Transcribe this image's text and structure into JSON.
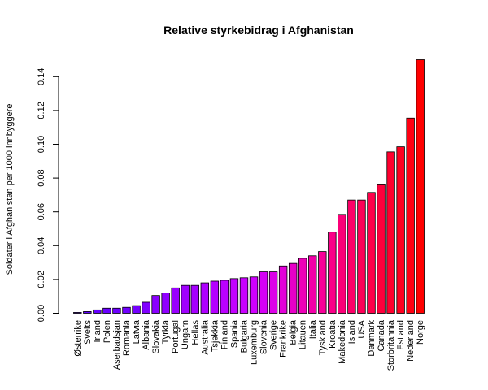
{
  "chart_data": {
    "type": "bar",
    "title": "Relative styrkebidrag i Afghanistan",
    "xlabel": "",
    "ylabel": "Soldater i Afghanistan per 1000 innbyggere",
    "ylim": [
      0,
      0.15
    ],
    "yticks": [
      "0.00",
      "0.02",
      "0.04",
      "0.06",
      "0.08",
      "0.10",
      "0.12",
      "0.14"
    ],
    "ytick_values": [
      0,
      0.02,
      0.04,
      0.06,
      0.08,
      0.1,
      0.12,
      0.14
    ],
    "categories": [
      "Østerrike",
      "Sveits",
      "Irland",
      "Polen",
      "Aserbadsjan",
      "Romania",
      "Latvia",
      "Albania",
      "Slovakia",
      "Tyrkia",
      "Portugal",
      "Ungarn",
      "Hellas",
      "Australia",
      "Tsjekkia",
      "Finland",
      "Spania",
      "Bulgaria",
      "Luxemburg",
      "Slovenia",
      "Sverige",
      "Frankrike",
      "Belgia",
      "Litauen",
      "Italia",
      "Tyskland",
      "Kroatia",
      "Makedonia",
      "Island",
      "USA",
      "Danmark",
      "Canada",
      "Storbritannia",
      "Estland",
      "Nederland",
      "Norge"
    ],
    "values": [
      0.0005,
      0.001,
      0.002,
      0.003,
      0.003,
      0.0035,
      0.0045,
      0.0065,
      0.0105,
      0.012,
      0.015,
      0.0165,
      0.0165,
      0.018,
      0.019,
      0.0195,
      0.0205,
      0.021,
      0.0215,
      0.0245,
      0.0245,
      0.028,
      0.0295,
      0.0325,
      0.034,
      0.0365,
      0.048,
      0.0585,
      0.067,
      0.067,
      0.0715,
      0.076,
      0.0955,
      0.0985,
      0.1155,
      0.15
    ],
    "colors": [
      "#5f00ff",
      "#6000ff",
      "#6600ff",
      "#6a00ff",
      "#6d00ff",
      "#7100ff",
      "#7500ff",
      "#8000ff",
      "#8a00ff",
      "#9000ff",
      "#9900ff",
      "#a000ff",
      "#a500ff",
      "#ae00ff",
      "#b400ff",
      "#bb00ff",
      "#c200ff",
      "#c800ff",
      "#cf00ff",
      "#d500f5",
      "#dc00e8",
      "#e200d8",
      "#e800c8",
      "#ee00b8",
      "#f300a8",
      "#f70098",
      "#fa0088",
      "#fb0078",
      "#fc0068",
      "#fd0058",
      "#fe004a",
      "#fe003c",
      "#ff002e",
      "#ff0020",
      "#ff0012",
      "#ff0000"
    ],
    "grid": false,
    "legend": "none"
  }
}
